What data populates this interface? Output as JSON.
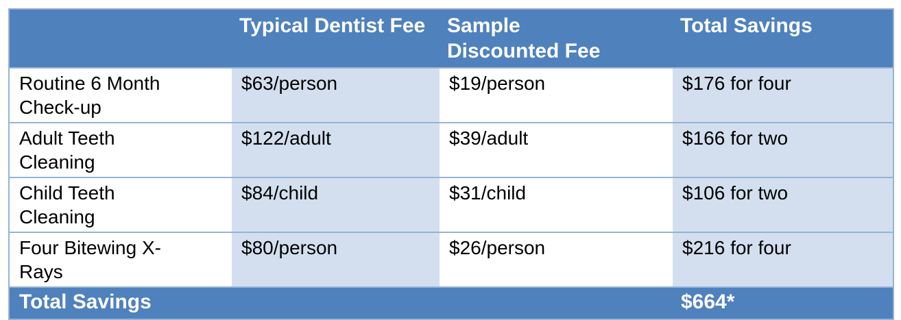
{
  "colors": {
    "header_bg": "#4F81BD",
    "header_text": "#FFFFFF",
    "band_bg": "#D3DFEE",
    "border": "#95B3D7",
    "body_text": "#000000"
  },
  "table": {
    "columns": [
      {
        "label": ""
      },
      {
        "label": "Typical Dentist Fee"
      },
      {
        "label": "Sample Discounted Fee"
      },
      {
        "label": "Total Savings"
      }
    ],
    "rows": [
      {
        "service": "Routine 6 Month Check-up",
        "typical_fee": "$63/person",
        "discounted_fee": "$19/person",
        "savings": "$176 for four"
      },
      {
        "service": "Adult Teeth Cleaning",
        "typical_fee": "$122/adult",
        "discounted_fee": "$39/adult",
        "savings": "$166 for two"
      },
      {
        "service": "Child Teeth Cleaning",
        "typical_fee": "$84/child",
        "discounted_fee": "$31/child",
        "savings": "$106 for two"
      },
      {
        "service": "Four Bitewing X-Rays",
        "typical_fee": "$80/person",
        "discounted_fee": "$26/person",
        "savings": "$216 for four"
      }
    ],
    "footer": {
      "label": "Total Savings",
      "total": "$664*"
    }
  }
}
